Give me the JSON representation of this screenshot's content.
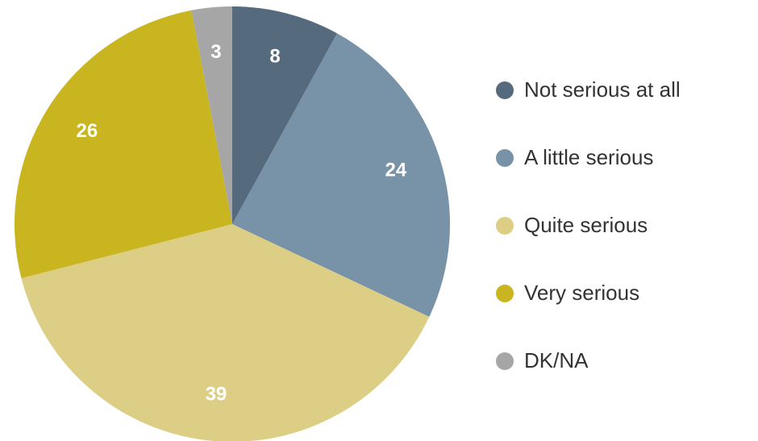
{
  "chart_data": {
    "type": "pie",
    "categories": [
      "Not serious at all",
      "A little serious",
      "Quite serious",
      "Very serious",
      "DK/NA"
    ],
    "values": [
      8,
      24,
      39,
      26,
      3
    ],
    "colors": [
      "#566a7d",
      "#7892a8",
      "#dccf85",
      "#c9b520",
      "#a6a6a6"
    ],
    "legend": "right"
  }
}
